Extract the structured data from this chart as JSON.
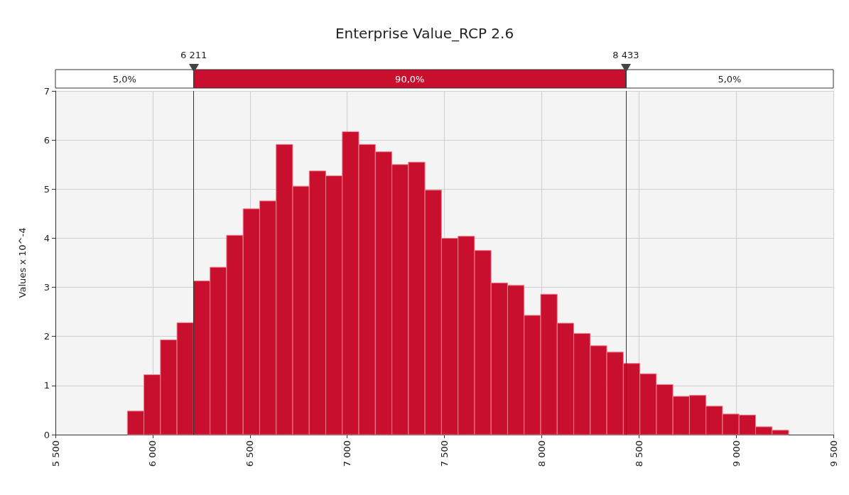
{
  "chart_data": {
    "type": "histogram",
    "title": "Enterprise Value_RCP 2.6",
    "ylabel": "Values x 10^-4",
    "color": "#c8102e",
    "bins": [
      5870,
      5955,
      6040,
      6125,
      6210,
      6295,
      6380,
      6465,
      6550,
      6635,
      6720,
      6805,
      6890,
      6975,
      7060,
      7145,
      7230,
      7315,
      7400,
      7485,
      7570,
      7655,
      7740,
      7825,
      7910,
      7995,
      8080,
      8165,
      8250,
      8335,
      8420,
      8505,
      8590,
      8675,
      8760,
      8845,
      8930,
      9015,
      9100,
      9185,
      9270
    ],
    "values": [
      0.48,
      1.22,
      1.93,
      2.28,
      3.13,
      3.41,
      4.06,
      4.6,
      4.76,
      5.91,
      5.06,
      5.37,
      5.27,
      6.17,
      5.91,
      5.76,
      5.5,
      5.55,
      4.98,
      4.0,
      4.04,
      3.75,
      3.09,
      3.04,
      2.43,
      2.86,
      2.27,
      2.06,
      1.81,
      1.68,
      1.45,
      1.24,
      1.02,
      0.78,
      0.8,
      0.58,
      0.42,
      0.4,
      0.16,
      0.09
    ],
    "xlim": [
      5500,
      9500
    ],
    "xticks": [
      {
        "value": 5500,
        "label": "5 500"
      },
      {
        "value": 6000,
        "label": "6 000"
      },
      {
        "value": 6500,
        "label": "6 500"
      },
      {
        "value": 7000,
        "label": "7 000"
      },
      {
        "value": 7500,
        "label": "7 500"
      },
      {
        "value": 8000,
        "label": "8 000"
      },
      {
        "value": 8500,
        "label": "8 500"
      },
      {
        "value": 9000,
        "label": "9 000"
      },
      {
        "value": 9500,
        "label": "9 500"
      }
    ],
    "ylim": [
      0,
      7
    ],
    "yticks": [
      0,
      1,
      2,
      3,
      4,
      5,
      6,
      7
    ],
    "grid": true,
    "ref_lines": [
      {
        "axis": "x",
        "value": 6211,
        "label": "6 211"
      },
      {
        "axis": "x",
        "value": 8433,
        "label": "8 433"
      }
    ],
    "annotations": [
      "5,0%",
      "90,0%",
      "5,0%"
    ]
  }
}
